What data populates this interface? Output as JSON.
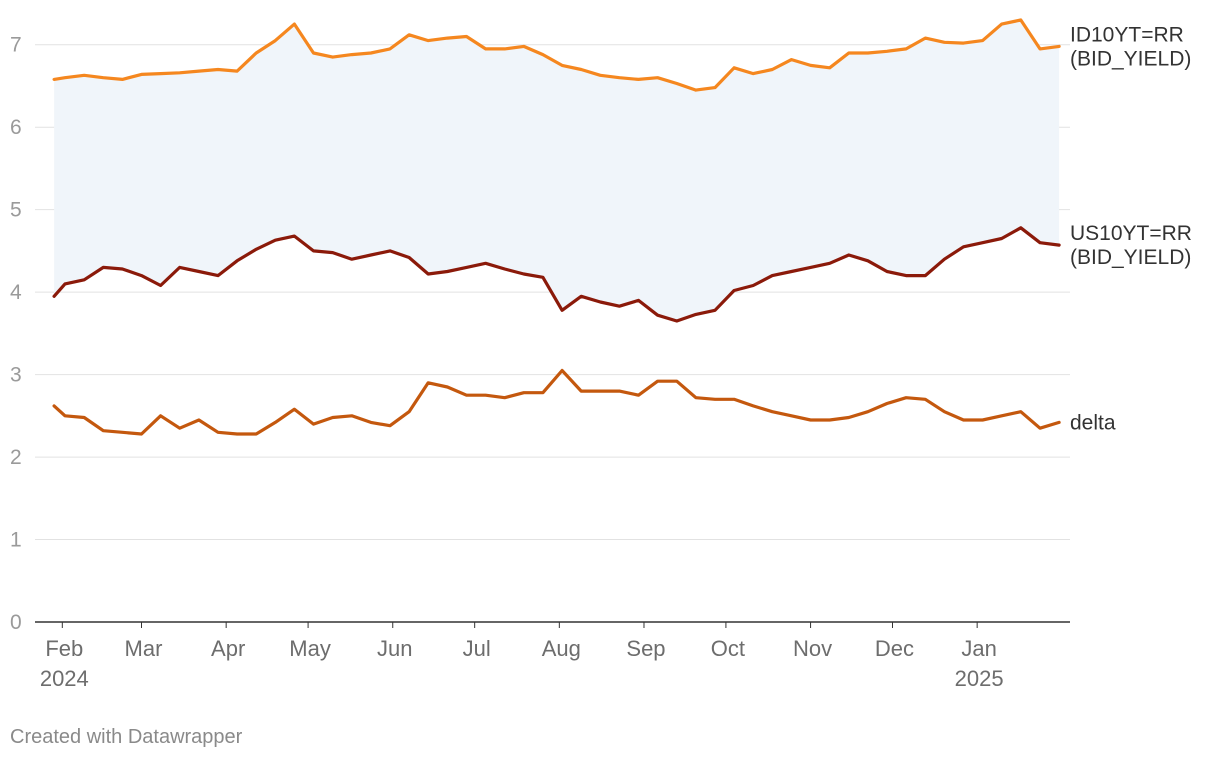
{
  "chart_data": {
    "type": "line",
    "title": "",
    "xlabel": "",
    "ylabel": "",
    "ylim": [
      0,
      7.3
    ],
    "y_ticks": [
      0,
      1,
      2,
      3,
      4,
      5,
      6,
      7
    ],
    "grid": true,
    "area_between": [
      "id10yt",
      "us10yt"
    ],
    "x_ticks": [
      {
        "date": "2024-02-01",
        "label": "Feb",
        "year": "2024"
      },
      {
        "date": "2024-03-01",
        "label": "Mar"
      },
      {
        "date": "2024-04-01",
        "label": "Apr"
      },
      {
        "date": "2024-05-01",
        "label": "May"
      },
      {
        "date": "2024-06-01",
        "label": "Jun"
      },
      {
        "date": "2024-07-01",
        "label": "Jul"
      },
      {
        "date": "2024-08-01",
        "label": "Aug"
      },
      {
        "date": "2024-09-01",
        "label": "Sep"
      },
      {
        "date": "2024-10-01",
        "label": "Oct"
      },
      {
        "date": "2024-11-01",
        "label": "Nov"
      },
      {
        "date": "2024-12-01",
        "label": "Dec"
      },
      {
        "date": "2025-01-01",
        "label": "Jan",
        "year": "2025"
      }
    ],
    "series": [
      {
        "id": "id10yt",
        "label_lines": [
          "ID10YT=RR",
          "(BID_YIELD)"
        ],
        "color": "#f5871f",
        "x": [
          "2024-01-29",
          "2024-02-02",
          "2024-02-09",
          "2024-02-16",
          "2024-02-23",
          "2024-03-01",
          "2024-03-08",
          "2024-03-15",
          "2024-03-22",
          "2024-03-29",
          "2024-04-05",
          "2024-04-12",
          "2024-04-19",
          "2024-04-26",
          "2024-05-03",
          "2024-05-10",
          "2024-05-17",
          "2024-05-24",
          "2024-05-31",
          "2024-06-07",
          "2024-06-14",
          "2024-06-21",
          "2024-06-28",
          "2024-07-05",
          "2024-07-12",
          "2024-07-19",
          "2024-07-26",
          "2024-08-02",
          "2024-08-09",
          "2024-08-16",
          "2024-08-23",
          "2024-08-30",
          "2024-09-06",
          "2024-09-13",
          "2024-09-20",
          "2024-09-27",
          "2024-10-04",
          "2024-10-11",
          "2024-10-18",
          "2024-10-25",
          "2024-11-01",
          "2024-11-08",
          "2024-11-15",
          "2024-11-22",
          "2024-11-29",
          "2024-12-06",
          "2024-12-13",
          "2024-12-20",
          "2024-12-27",
          "2025-01-03",
          "2025-01-10",
          "2025-01-17",
          "2025-01-24",
          "2025-01-31"
        ],
        "values": [
          6.58,
          6.6,
          6.63,
          6.6,
          6.58,
          6.64,
          6.65,
          6.66,
          6.68,
          6.7,
          6.68,
          6.9,
          7.05,
          7.25,
          6.9,
          6.85,
          6.88,
          6.9,
          6.95,
          7.12,
          7.05,
          7.08,
          7.1,
          6.95,
          6.95,
          6.98,
          6.88,
          6.75,
          6.7,
          6.63,
          6.6,
          6.58,
          6.6,
          6.53,
          6.45,
          6.48,
          6.72,
          6.65,
          6.7,
          6.82,
          6.75,
          6.72,
          6.9,
          6.9,
          6.92,
          6.95,
          7.08,
          7.03,
          7.02,
          7.05,
          7.25,
          7.3,
          6.95,
          6.98
        ]
      },
      {
        "id": "us10yt",
        "label_lines": [
          "US10YT=RR",
          "(BID_YIELD)"
        ],
        "color": "#8b1a0a",
        "x": [
          "2024-01-29",
          "2024-02-02",
          "2024-02-09",
          "2024-02-16",
          "2024-02-23",
          "2024-03-01",
          "2024-03-08",
          "2024-03-15",
          "2024-03-22",
          "2024-03-29",
          "2024-04-05",
          "2024-04-12",
          "2024-04-19",
          "2024-04-26",
          "2024-05-03",
          "2024-05-10",
          "2024-05-17",
          "2024-05-24",
          "2024-05-31",
          "2024-06-07",
          "2024-06-14",
          "2024-06-21",
          "2024-06-28",
          "2024-07-05",
          "2024-07-12",
          "2024-07-19",
          "2024-07-26",
          "2024-08-02",
          "2024-08-09",
          "2024-08-16",
          "2024-08-23",
          "2024-08-30",
          "2024-09-06",
          "2024-09-13",
          "2024-09-20",
          "2024-09-27",
          "2024-10-04",
          "2024-10-11",
          "2024-10-18",
          "2024-10-25",
          "2024-11-01",
          "2024-11-08",
          "2024-11-15",
          "2024-11-22",
          "2024-11-29",
          "2024-12-06",
          "2024-12-13",
          "2024-12-20",
          "2024-12-27",
          "2025-01-03",
          "2025-01-10",
          "2025-01-17",
          "2025-01-24",
          "2025-01-31"
        ],
        "values": [
          3.95,
          4.1,
          4.15,
          4.3,
          4.28,
          4.2,
          4.08,
          4.3,
          4.25,
          4.2,
          4.38,
          4.52,
          4.63,
          4.68,
          4.5,
          4.48,
          4.4,
          4.45,
          4.5,
          4.42,
          4.22,
          4.25,
          4.3,
          4.35,
          4.28,
          4.22,
          4.18,
          3.78,
          3.95,
          3.88,
          3.83,
          3.9,
          3.72,
          3.65,
          3.73,
          3.78,
          4.02,
          4.08,
          4.2,
          4.25,
          4.3,
          4.35,
          4.45,
          4.38,
          4.25,
          4.2,
          4.2,
          4.4,
          4.55,
          4.6,
          4.65,
          4.78,
          4.6,
          4.57
        ]
      },
      {
        "id": "delta",
        "label_lines": [
          "delta"
        ],
        "color": "#c4580e",
        "x": [
          "2024-01-29",
          "2024-02-02",
          "2024-02-09",
          "2024-02-16",
          "2024-02-23",
          "2024-03-01",
          "2024-03-08",
          "2024-03-15",
          "2024-03-22",
          "2024-03-29",
          "2024-04-05",
          "2024-04-12",
          "2024-04-19",
          "2024-04-26",
          "2024-05-03",
          "2024-05-10",
          "2024-05-17",
          "2024-05-24",
          "2024-05-31",
          "2024-06-07",
          "2024-06-14",
          "2024-06-21",
          "2024-06-28",
          "2024-07-05",
          "2024-07-12",
          "2024-07-19",
          "2024-07-26",
          "2024-08-02",
          "2024-08-09",
          "2024-08-16",
          "2024-08-23",
          "2024-08-30",
          "2024-09-06",
          "2024-09-13",
          "2024-09-20",
          "2024-09-27",
          "2024-10-04",
          "2024-10-11",
          "2024-10-18",
          "2024-10-25",
          "2024-11-01",
          "2024-11-08",
          "2024-11-15",
          "2024-11-22",
          "2024-11-29",
          "2024-12-06",
          "2024-12-13",
          "2024-12-20",
          "2024-12-27",
          "2025-01-03",
          "2025-01-10",
          "2025-01-17",
          "2025-01-24",
          "2025-01-31"
        ],
        "values": [
          2.62,
          2.5,
          2.48,
          2.32,
          2.3,
          2.28,
          2.5,
          2.35,
          2.45,
          2.3,
          2.28,
          2.28,
          2.42,
          2.58,
          2.4,
          2.48,
          2.5,
          2.42,
          2.38,
          2.55,
          2.9,
          2.85,
          2.75,
          2.75,
          2.72,
          2.78,
          2.78,
          3.05,
          2.8,
          2.8,
          2.8,
          2.75,
          2.92,
          2.92,
          2.72,
          2.7,
          2.7,
          2.62,
          2.55,
          2.5,
          2.45,
          2.45,
          2.48,
          2.55,
          2.65,
          2.72,
          2.7,
          2.55,
          2.45,
          2.45,
          2.5,
          2.55,
          2.35,
          2.42
        ]
      }
    ]
  },
  "footer": {
    "credit": "Created with Datawrapper"
  }
}
